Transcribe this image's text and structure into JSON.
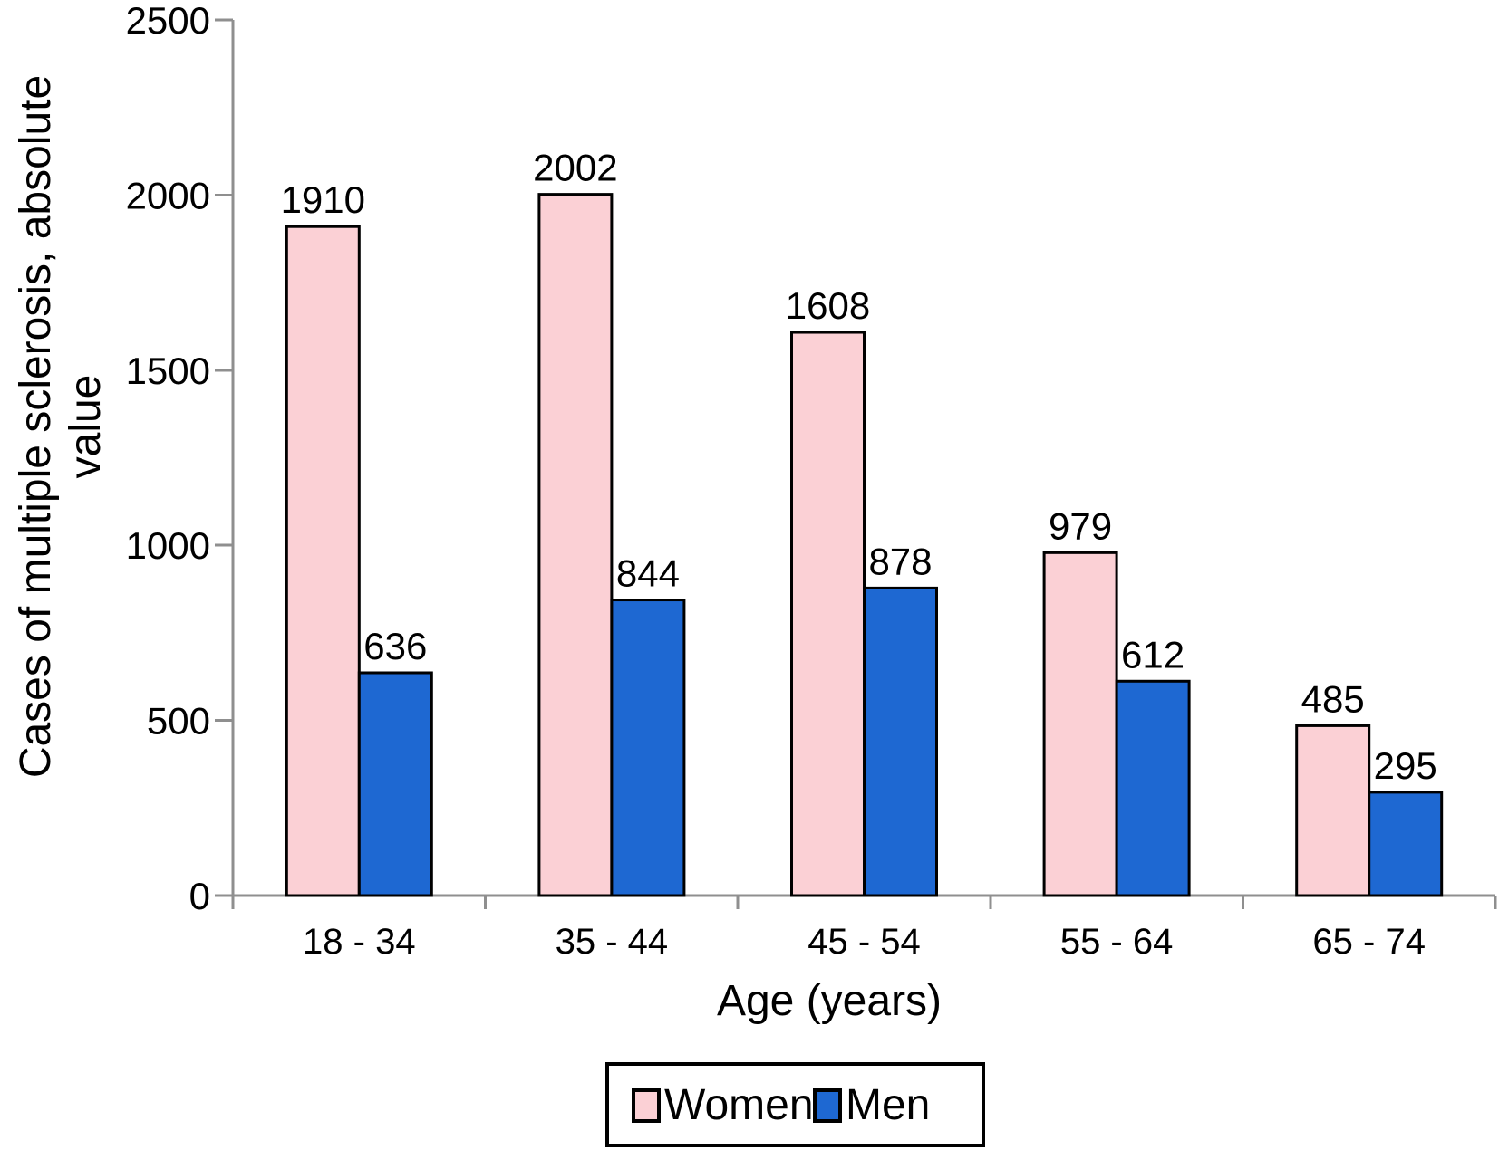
{
  "chart_data": {
    "type": "bar",
    "title": "",
    "categories": [
      "18 - 34",
      "35 - 44",
      "45 - 54",
      "55 - 64",
      "65 - 74"
    ],
    "series": [
      {
        "name": "Women",
        "color": "#FBD0D5",
        "values": [
          1910,
          2002,
          1608,
          979,
          485
        ]
      },
      {
        "name": "Men",
        "color": "#1E68D2",
        "values": [
          636,
          844,
          878,
          612,
          295
        ]
      }
    ],
    "xlabel": "Age (years)",
    "ylabel": "Cases of multiple sclerosis, absolute value",
    "ylabel_lines": [
      "Cases of multiple sclerosis, absolute",
      "value"
    ],
    "ylim": [
      0,
      2500
    ],
    "yticks": [
      0,
      500,
      1000,
      1500,
      2000,
      2500
    ],
    "value_labels": true,
    "grid": false,
    "legend_position": "bottom",
    "axis_color": "#8F8F8F",
    "bar_outline_color": "#000000",
    "text_color": "#000000",
    "background": "#FFFFFF"
  }
}
